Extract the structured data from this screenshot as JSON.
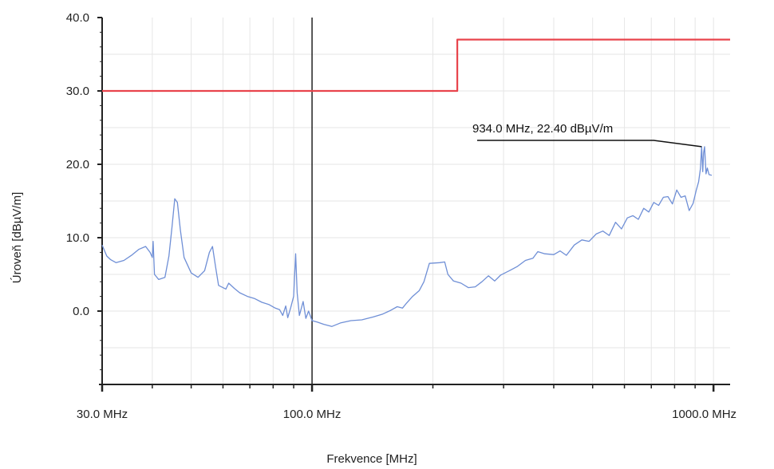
{
  "chart_data": {
    "type": "line",
    "x_scale": "log",
    "xlabel": "Frekvence [MHz]",
    "ylabel": "Úroveň [dBµV/m]",
    "xlim": [
      30,
      1100
    ],
    "ylim": [
      -10,
      40
    ],
    "x_ticks": [
      {
        "value": 30,
        "label": "30.0 MHz"
      },
      {
        "value": 100,
        "label": "100.0 MHz"
      },
      {
        "value": 1000,
        "label": "1000.0 MHz"
      }
    ],
    "y_ticks": [
      {
        "value": 0,
        "label": "0.0"
      },
      {
        "value": 10,
        "label": "10.0"
      },
      {
        "value": 20,
        "label": "20.0"
      },
      {
        "value": 30,
        "label": "30.0"
      },
      {
        "value": 40,
        "label": "40.0"
      }
    ],
    "grid": true,
    "legend": "none",
    "colors": {
      "limit": "#e8444c",
      "measurement": "#6f8fd6",
      "axis": "#222222",
      "grid": "#e6e6e6"
    },
    "series": [
      {
        "role": "limit",
        "points": [
          [
            30,
            30
          ],
          [
            230,
            30
          ],
          [
            230,
            37
          ],
          [
            1100,
            37
          ]
        ]
      },
      {
        "role": "measurement",
        "points": [
          [
            30,
            9
          ],
          [
            30.8,
            7.5
          ],
          [
            31.5,
            7
          ],
          [
            32.5,
            6.6
          ],
          [
            34,
            6.9
          ],
          [
            35.5,
            7.6
          ],
          [
            37,
            8.4
          ],
          [
            38.5,
            8.8
          ],
          [
            39.5,
            8
          ],
          [
            40,
            7.3
          ],
          [
            40.2,
            9.5
          ],
          [
            40.5,
            5
          ],
          [
            41.5,
            4.3
          ],
          [
            43,
            4.6
          ],
          [
            44,
            7.5
          ],
          [
            44.8,
            11.5
          ],
          [
            45.5,
            15.3
          ],
          [
            46.2,
            14.8
          ],
          [
            47,
            11
          ],
          [
            48,
            7.3
          ],
          [
            50,
            5.2
          ],
          [
            52,
            4.6
          ],
          [
            54,
            5.5
          ],
          [
            55.5,
            8
          ],
          [
            56.5,
            8.8
          ],
          [
            57.5,
            6
          ],
          [
            58.5,
            3.5
          ],
          [
            61,
            3
          ],
          [
            62,
            3.8
          ],
          [
            64,
            3.1
          ],
          [
            66,
            2.5
          ],
          [
            69,
            2
          ],
          [
            72,
            1.7
          ],
          [
            75,
            1.2
          ],
          [
            78,
            0.9
          ],
          [
            81,
            0.4
          ],
          [
            83,
            0.2
          ],
          [
            84.5,
            -0.6
          ],
          [
            86,
            0.7
          ],
          [
            87,
            -0.9
          ],
          [
            88.5,
            0.5
          ],
          [
            90,
            2
          ],
          [
            91,
            7.8
          ],
          [
            91.8,
            2.5
          ],
          [
            93,
            -0.6
          ],
          [
            95,
            1.3
          ],
          [
            96.5,
            -1
          ],
          [
            98,
            0
          ],
          [
            100,
            -1.3
          ],
          [
            103,
            -1.5
          ],
          [
            107,
            -1.8
          ],
          [
            112,
            -2.1
          ],
          [
            118,
            -1.6
          ],
          [
            125,
            -1.3
          ],
          [
            133,
            -1.2
          ],
          [
            142,
            -0.8
          ],
          [
            150,
            -0.4
          ],
          [
            157,
            0.1
          ],
          [
            163,
            0.6
          ],
          [
            168,
            0.4
          ],
          [
            172,
            1.1
          ],
          [
            178,
            2
          ],
          [
            185,
            2.8
          ],
          [
            190,
            4
          ],
          [
            196,
            6.5
          ],
          [
            208,
            6.6
          ],
          [
            214,
            6.7
          ],
          [
            218,
            5
          ],
          [
            225,
            4.1
          ],
          [
            235,
            3.8
          ],
          [
            245,
            3.2
          ],
          [
            255,
            3.3
          ],
          [
            265,
            4
          ],
          [
            275,
            4.8
          ],
          [
            285,
            4.1
          ],
          [
            295,
            4.9
          ],
          [
            310,
            5.5
          ],
          [
            325,
            6.1
          ],
          [
            340,
            6.9
          ],
          [
            355,
            7.2
          ],
          [
            365,
            8.1
          ],
          [
            380,
            7.8
          ],
          [
            400,
            7.7
          ],
          [
            415,
            8.2
          ],
          [
            430,
            7.6
          ],
          [
            450,
            9
          ],
          [
            470,
            9.7
          ],
          [
            490,
            9.5
          ],
          [
            510,
            10.5
          ],
          [
            530,
            10.9
          ],
          [
            550,
            10.3
          ],
          [
            570,
            12.1
          ],
          [
            590,
            11.2
          ],
          [
            610,
            12.7
          ],
          [
            630,
            13
          ],
          [
            650,
            12.5
          ],
          [
            670,
            14
          ],
          [
            690,
            13.5
          ],
          [
            710,
            14.8
          ],
          [
            730,
            14.4
          ],
          [
            750,
            15.5
          ],
          [
            770,
            15.6
          ],
          [
            790,
            14.6
          ],
          [
            810,
            16.5
          ],
          [
            830,
            15.5
          ],
          [
            850,
            15.7
          ],
          [
            870,
            13.7
          ],
          [
            890,
            14.7
          ],
          [
            905,
            16.4
          ],
          [
            918,
            17.6
          ],
          [
            928,
            19.4
          ],
          [
            934,
            22.4
          ],
          [
            940,
            19
          ],
          [
            945,
            21.6
          ],
          [
            950,
            22.4
          ],
          [
            958,
            18.7
          ],
          [
            965,
            19.5
          ],
          [
            975,
            18.6
          ],
          [
            990,
            18.5
          ]
        ]
      }
    ],
    "annotations": [
      {
        "text": "934.0 MHz, 22.40 dBµV/m",
        "x": 934,
        "y": 22.4
      }
    ]
  }
}
